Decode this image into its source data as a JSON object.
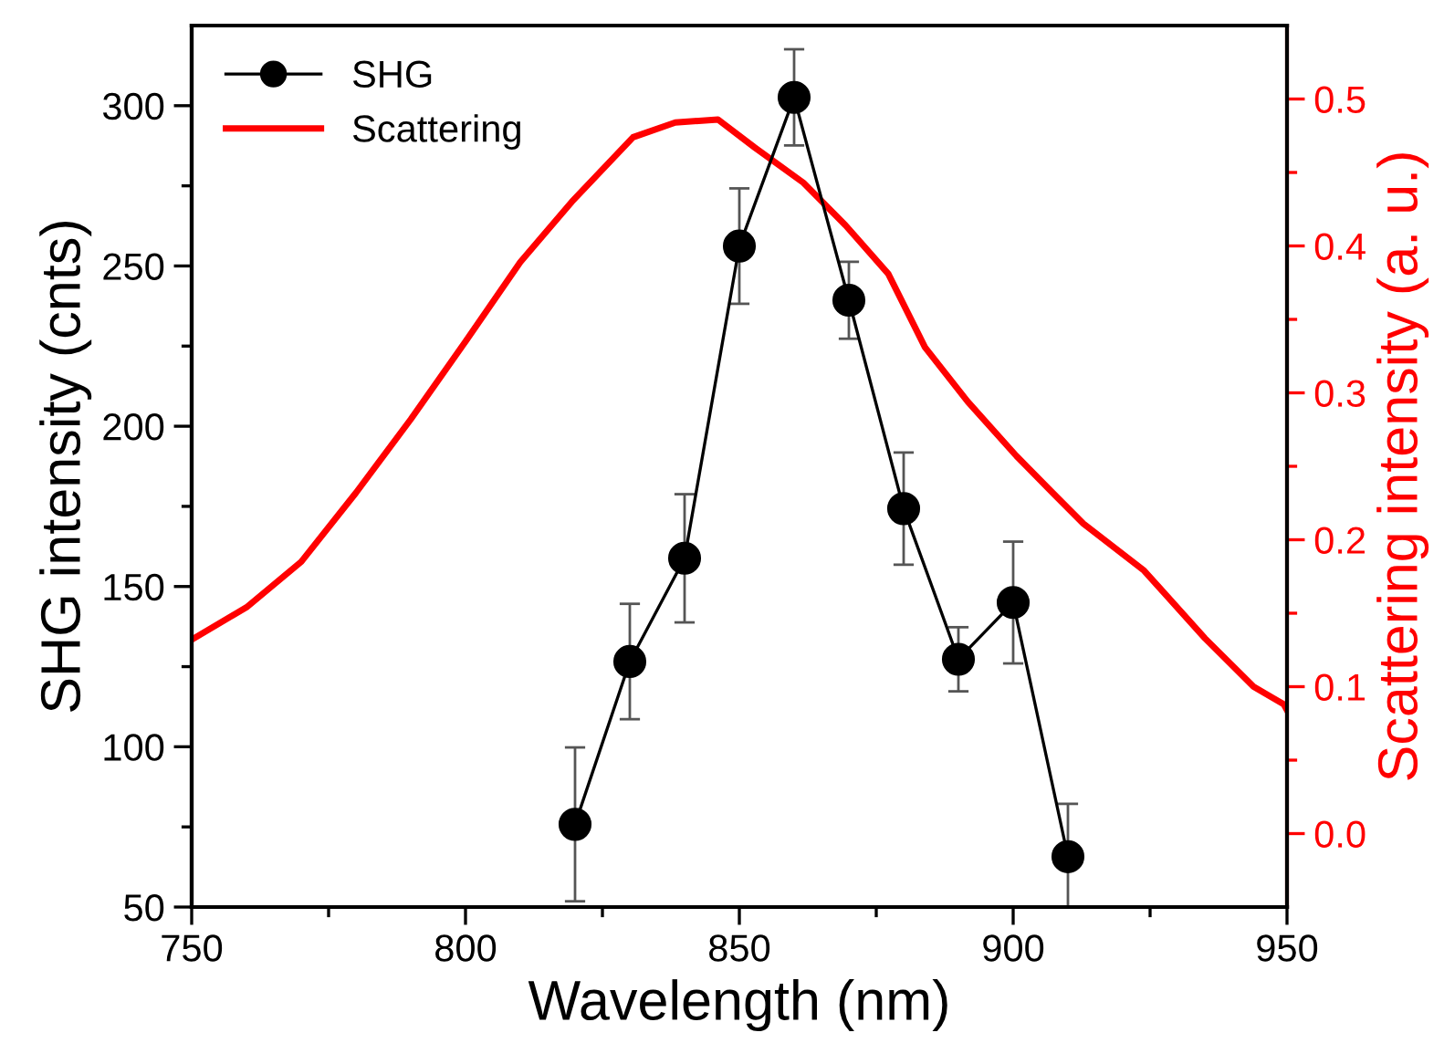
{
  "chart_data": {
    "type": "line",
    "xlabel": "Wavelength (nm)",
    "ylabel": "SHG intensity (cnts)",
    "y2label": "Scattering intensity (a. u.)",
    "xlim": [
      750,
      950
    ],
    "xticks": [
      750,
      {
        "value": 775,
        "label": null
      },
      800,
      {
        "value": 825,
        "label": null
      },
      850,
      {
        "value": 875,
        "label": null
      },
      900,
      {
        "value": 925,
        "label": null
      },
      950
    ],
    "ylim": [
      50,
      325
    ],
    "yticks": [
      50,
      {
        "value": 75,
        "label": null
      },
      100,
      {
        "value": 125,
        "label": null
      },
      150,
      {
        "value": 175,
        "label": null
      },
      200,
      {
        "value": 225,
        "label": null
      },
      250,
      {
        "value": 275,
        "label": null
      },
      300
    ],
    "y2lim": [
      -0.05,
      0.55
    ],
    "y2ticks": [
      {
        "value": 0,
        "label": "0.0"
      },
      {
        "value": 0.05,
        "label": null
      },
      0.1,
      {
        "value": 0.15,
        "label": null
      },
      0.2,
      {
        "value": 0.25,
        "label": null
      },
      0.3,
      {
        "value": 0.35,
        "label": null
      },
      0.4,
      {
        "value": 0.45,
        "label": null
      },
      0.5
    ],
    "legend": "top left",
    "grid": false,
    "series": [
      {
        "name": "SHG",
        "marker": "circle",
        "color": "#000000",
        "x": [
          820,
          830,
          840,
          850,
          860,
          870,
          880,
          890,
          900,
          910
        ],
        "values": [
          75.8,
          126.6,
          158.8,
          256.2,
          302.6,
          239.3,
          174.3,
          127.3,
          145,
          65.7
        ],
        "errors": [
          24,
          18,
          20,
          18,
          15,
          12,
          17.5,
          10,
          19,
          16.5
        ]
      },
      {
        "name": "Scattering",
        "axis": "y2",
        "color": "#ff0000",
        "x": [
          750,
          760,
          770,
          780,
          790,
          800,
          810,
          819.4,
          830.6,
          838.3,
          846.1,
          852.8,
          861.7,
          869.4,
          877.2,
          883.9,
          891.7,
          900.6,
          907.2,
          912.8,
          923.9,
          935,
          943.9,
          949.4,
          950
        ],
        "values": [
          0.132,
          0.154,
          0.185,
          0.232,
          0.282,
          0.335,
          0.389,
          0.43,
          0.474,
          0.484,
          0.486,
          0.467,
          0.443,
          0.414,
          0.381,
          0.331,
          0.294,
          0.257,
          0.232,
          0.211,
          0.179,
          0.133,
          0.1,
          0.088,
          0.084
        ]
      }
    ]
  }
}
